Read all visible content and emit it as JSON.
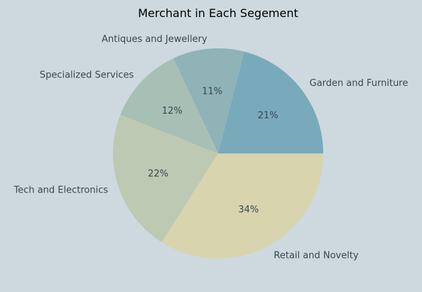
{
  "chart_data": {
    "type": "pie",
    "title": "Merchant in Each Segement",
    "start_angle_deg": 0,
    "direction": "counterclockwise",
    "slices": [
      {
        "label": "Garden and Furniture",
        "value": 21,
        "pct_text": "21%",
        "color": "#78aabc"
      },
      {
        "label": "Antiques and Jewellery",
        "value": 11,
        "pct_text": "11%",
        "color": "#8fb3b7"
      },
      {
        "label": "Specialized Services",
        "value": 12,
        "pct_text": "12%",
        "color": "#a7bfb4"
      },
      {
        "label": "Tech and Electronics",
        "value": 22,
        "pct_text": "22%",
        "color": "#bdc9b3"
      },
      {
        "label": "Retail and Novelty",
        "value": 34,
        "pct_text": "34%",
        "color": "#d7d4ae"
      }
    ]
  },
  "colors": {
    "background": "#cdd9de",
    "text": "#3b4650",
    "title": "#000000"
  }
}
